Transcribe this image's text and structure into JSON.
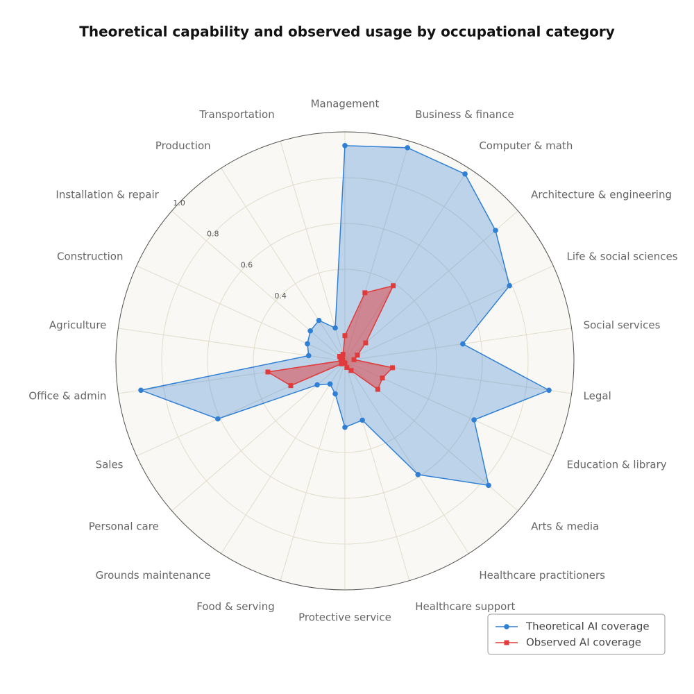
{
  "chart_data": {
    "type": "radar",
    "title": "Theoretical capability and observed usage by occupational category",
    "categories": [
      "Management",
      "Business & finance",
      "Computer & math",
      "Architecture & engineering",
      "Life & social sciences",
      "Social services",
      "Legal",
      "Education & library",
      "Arts & media",
      "Healthcare practitioners",
      "Healthcare support",
      "Protective service",
      "Food & serving",
      "Grounds maintenance",
      "Personal care",
      "Sales",
      "Office & admin",
      "Agriculture",
      "Construction",
      "Installation & repair",
      "Production",
      "Transportation"
    ],
    "series": [
      {
        "name": "Theoretical AI coverage",
        "color": "#2f7fd4",
        "marker": "circle",
        "values": [
          0.94,
          0.97,
          0.97,
          0.87,
          0.79,
          0.52,
          0.9,
          0.62,
          0.83,
          0.59,
          0.27,
          0.29,
          0.15,
          0.12,
          0.16,
          0.61,
          0.9,
          0.16,
          0.18,
          0.2,
          0.21,
          0.15
        ]
      },
      {
        "name": "Observed AI coverage",
        "color": "#e03a3a",
        "marker": "square",
        "values": [
          0.11,
          0.31,
          0.39,
          0.12,
          0.06,
          0.04,
          0.21,
          0.18,
          0.19,
          0.05,
          0.03,
          0.01,
          0.01,
          0.01,
          0.02,
          0.26,
          0.34,
          0.01,
          0.02,
          0.03,
          0.02,
          0.03
        ]
      }
    ],
    "ylim": [
      0,
      1
    ],
    "yticks": [
      0.4,
      0.6,
      0.8,
      {
        "value": 1,
        "label": "1.0"
      }
    ],
    "grid": true,
    "legend": "lower right"
  }
}
